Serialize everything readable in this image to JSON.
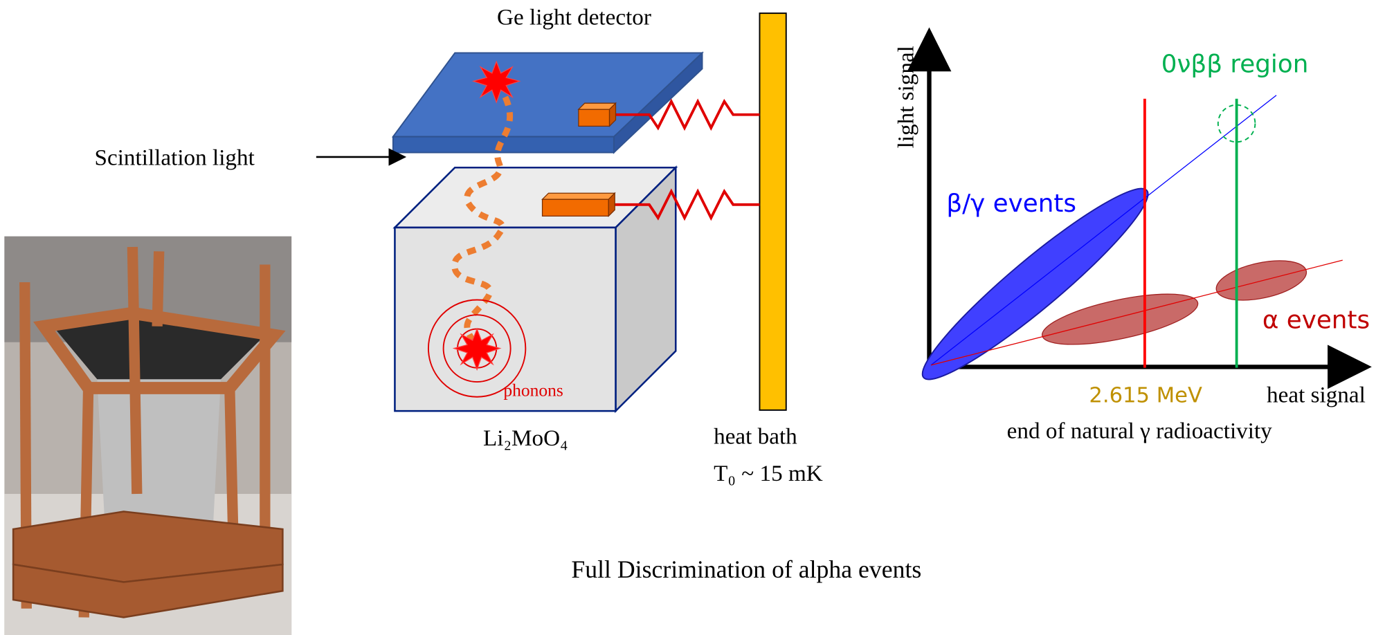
{
  "setup": {
    "light_detector": "Ge light detector",
    "scintillation": "Scintillation light",
    "crystal": "Li₂MoO₄",
    "phonons": "phonons",
    "heat_bath": "heat bath",
    "temperature": "T₀ ~ 15 mK"
  },
  "plot": {
    "y_axis": "light signal",
    "x_axis": "heat signal",
    "region": "0νββ region",
    "beta_gamma": "β/γ events",
    "alpha": "α events",
    "energy": "2.615 MeV",
    "energy_note": "end of natural γ radioactivity"
  },
  "caption": "Full Discrimination of alpha events"
}
